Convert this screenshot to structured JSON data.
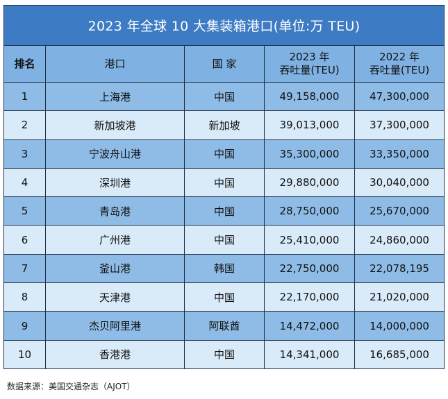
{
  "title": "2023 年全球 10 大集装箱港口(单位:万 TEU)",
  "headers": {
    "rank": "排名",
    "port": "港口",
    "country": "国 家",
    "y2023_line1": "2023 年",
    "y2023_line2": "吞吐量(TEU)",
    "y2022_line1": "2022 年",
    "y2022_line2": "吞吐量(TEU)"
  },
  "rows": [
    {
      "rank": "1",
      "port": "上海港",
      "country": "中国",
      "y2023": "49,158,000",
      "y2022": "47,300,000"
    },
    {
      "rank": "2",
      "port": "新加坡港",
      "country": "新加坡",
      "y2023": "39,013,000",
      "y2022": "37,300,000"
    },
    {
      "rank": "3",
      "port": "宁波舟山港",
      "country": "中国",
      "y2023": "35,300,000",
      "y2022": "33,350,000"
    },
    {
      "rank": "4",
      "port": "深圳港",
      "country": "中国",
      "y2023": "29,880,000",
      "y2022": "30,040,000"
    },
    {
      "rank": "5",
      "port": "青岛港",
      "country": "中国",
      "y2023": "28,750,000",
      "y2022": "25,670,000"
    },
    {
      "rank": "6",
      "port": "广州港",
      "country": "中国",
      "y2023": "25,410,000",
      "y2022": "24,860,000"
    },
    {
      "rank": "7",
      "port": "釜山港",
      "country": "韩国",
      "y2023": "22,750,000",
      "y2022": "22,078,195"
    },
    {
      "rank": "8",
      "port": "天津港",
      "country": "中国",
      "y2023": "22,170,000",
      "y2022": "21,020,000"
    },
    {
      "rank": "9",
      "port": "杰贝阿里港",
      "country": "阿联酋",
      "y2023": "14,472,000",
      "y2022": "14,000,000"
    },
    {
      "rank": "10",
      "port": "香港港",
      "country": "中国",
      "y2023": "14,341,000",
      "y2022": "16,685,000"
    }
  ],
  "source": "数据来源：美国交通杂志（AJOT）",
  "colors": {
    "title_bg": "#3d7cc4",
    "header_bg": "#7fb2e2",
    "row_dark": "#8ebce6",
    "row_light": "#d9eaf8"
  }
}
